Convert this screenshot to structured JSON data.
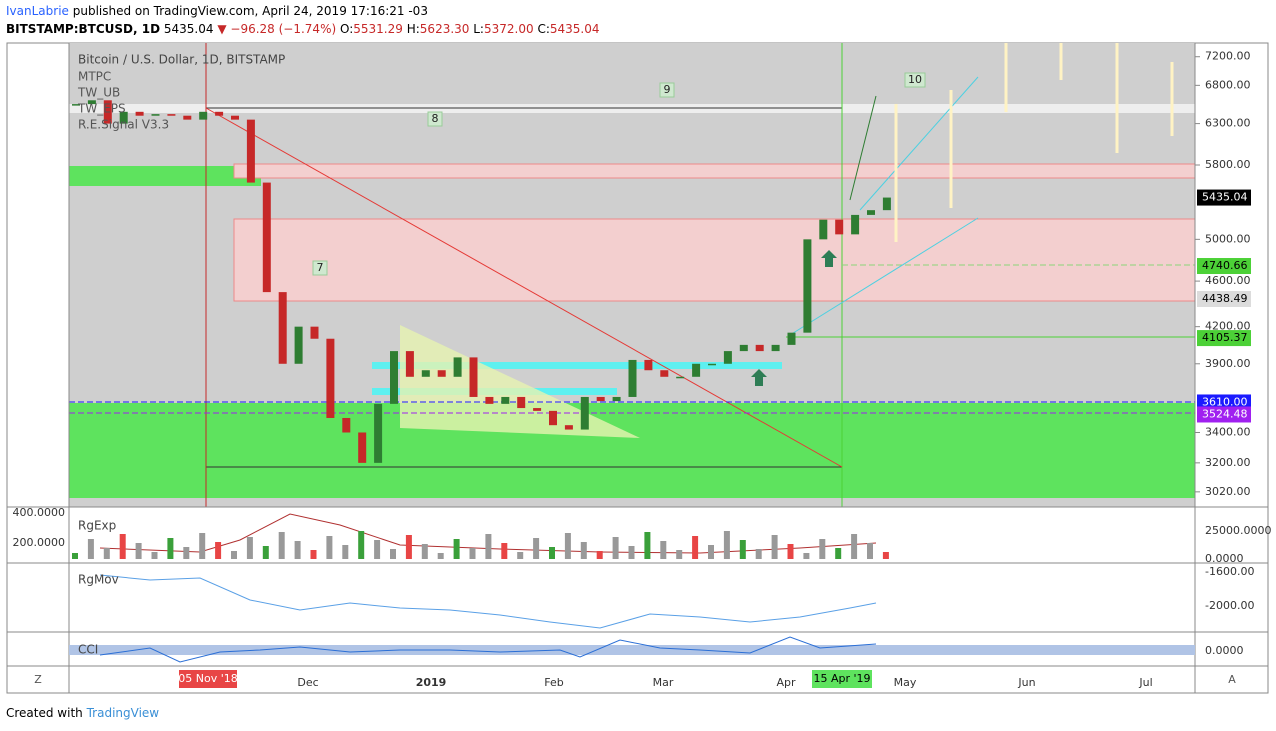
{
  "header": {
    "author": "IvanLabrie",
    "published": "published on TradingView.com, April 24, 2019 17:16:21 -03",
    "symbol": "BITSTAMP:BTCUSD, 1D",
    "last": "5435.04",
    "change": "▼ −96.28 (−1.74%)",
    "ohlc": [
      {
        "k": "O:",
        "v": "5531.29"
      },
      {
        "k": "H:",
        "v": "5623.30"
      },
      {
        "k": "L:",
        "v": "5372.00"
      },
      {
        "k": "C:",
        "v": "5435.04"
      }
    ]
  },
  "chart_data": {
    "type": "candlestick",
    "title": "Bitcoin / U.S. Dollar, 1D, BITSTAMP",
    "indicators": [
      "MTPC",
      "TW_UB",
      "TW_EPS",
      "R.E.Signal V3.3"
    ],
    "values": [
      6550,
      6600,
      6300,
      6450,
      6400,
      6420,
      6400,
      6350,
      6450,
      6400,
      6350,
      5600,
      4500,
      3900,
      4200,
      4100,
      3500,
      3400,
      3200,
      3600,
      4000,
      3800,
      3850,
      3800,
      3950,
      3650,
      3600,
      3650,
      3570,
      3550,
      3450,
      3420,
      3650,
      3620,
      3650,
      3930,
      3850,
      3800,
      3800,
      3900,
      3900,
      4000,
      4050,
      4000,
      4050,
      4150,
      5000,
      5200,
      5050,
      5250,
      5300,
      5435
    ],
    "up_color": "#2e7d32",
    "down_color": "#c62828",
    "log_scale": true,
    "ylim": [
      2930,
      7400
    ],
    "yticks": [
      {
        "value": 3020,
        "label": "3020.00"
      },
      {
        "value": 3200,
        "label": "3200.00"
      },
      {
        "value": 3400,
        "label": "3400.00"
      },
      {
        "value": 3900,
        "label": "3900.00"
      },
      {
        "value": 4200,
        "label": "4200.00"
      },
      {
        "value": 4600,
        "label": "4600.00"
      },
      {
        "value": 5000,
        "label": "5000.00"
      },
      {
        "value": 5800,
        "label": "5800.00"
      },
      {
        "value": 6300,
        "label": "6300.00"
      },
      {
        "value": 6800,
        "label": "6800.00"
      },
      {
        "value": 7200,
        "label": "7200.00"
      }
    ],
    "price_labels": [
      {
        "value": 5435.04,
        "label": "5435.04",
        "color": "#000000"
      },
      {
        "value": 4740.66,
        "label": "4740.66",
        "color": "#4cd137"
      },
      {
        "value": 4438.49,
        "label": "4438.49",
        "color": "#dcdcdc"
      },
      {
        "value": 4105.37,
        "label": "4105.37",
        "color": "#4cd137"
      },
      {
        "value": 3610,
        "label": "3610.00",
        "color": "#1a1aff"
      },
      {
        "value": 3524.48,
        "label": "3524.48",
        "color": "#a020f0"
      }
    ],
    "wave_labels": [
      "7",
      "8",
      "9",
      "10"
    ],
    "xaxis_labels": [
      "Dec",
      "2019",
      "Feb",
      "Mar",
      "Apr",
      "May",
      "Jun",
      "Jul"
    ],
    "marked_dates": [
      "05 Nov '18",
      "15 Apr '19"
    ],
    "panes": [
      {
        "name": "RgExp",
        "left_ticks": [
          "400.0000",
          "200.0000"
        ],
        "right_ticks": [
          "25000.0000",
          "0.0000"
        ]
      },
      {
        "name": "RgMov",
        "right_ticks": [
          "-1600.00",
          "-2000.00"
        ]
      },
      {
        "name": "CCI",
        "right_ticks": [
          "0.0000"
        ]
      }
    ],
    "corner_buttons": [
      "Z",
      "A"
    ]
  },
  "footer": {
    "created": "Created with",
    "brand": "TradingView"
  }
}
